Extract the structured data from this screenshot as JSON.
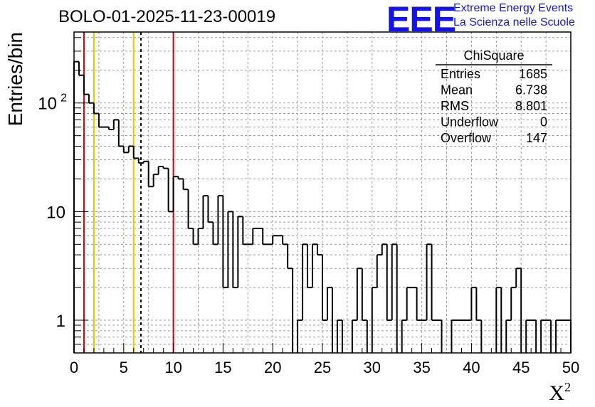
{
  "header": {
    "title": "BOLO-01-2025-11-23-00019",
    "logo": "EEE",
    "brand_line1": "Extreme Energy Events",
    "brand_line2": "La Scienza nelle Scuole"
  },
  "stats": {
    "title": "ChiSquare",
    "rows": [
      {
        "label": "Entries",
        "value": "1685"
      },
      {
        "label": "Mean",
        "value": "6.738"
      },
      {
        "label": "RMS",
        "value": "8.801"
      },
      {
        "label": "Underflow",
        "value": "0"
      },
      {
        "label": "Overflow",
        "value": "147"
      }
    ]
  },
  "chart_data": {
    "type": "histogram",
    "title": "BOLO-01-2025-11-23-00019",
    "xlabel": "X²",
    "ylabel": "Entries/bin",
    "xlim": [
      0,
      50
    ],
    "ylim": [
      0.5,
      450
    ],
    "yscale": "log",
    "grid": true,
    "bin_width": 0.5,
    "bin_start": 0,
    "values": [
      240,
      180,
      120,
      100,
      80,
      60,
      60,
      57,
      70,
      40,
      35,
      40,
      31,
      28,
      29,
      17,
      22,
      26,
      25,
      10,
      21,
      20,
      16,
      7,
      5,
      7,
      14,
      8,
      5,
      14,
      2,
      10,
      2,
      9,
      5,
      5,
      7,
      7,
      5,
      5,
      6,
      6,
      5,
      3,
      0,
      1,
      5,
      2,
      5,
      4,
      1,
      2,
      0,
      1,
      0,
      0,
      1,
      3,
      1,
      0,
      2,
      4,
      5,
      1,
      5,
      0,
      1,
      2,
      2,
      1,
      1,
      5,
      1,
      1,
      0,
      0,
      1,
      1,
      1,
      1,
      2,
      1,
      0,
      0,
      0,
      2,
      0,
      1,
      2,
      3,
      0,
      1,
      1,
      0,
      1,
      1,
      0,
      1,
      1,
      1
    ],
    "xticks": [
      0,
      5,
      10,
      15,
      20,
      25,
      30,
      35,
      40,
      45,
      50
    ],
    "xtick_labels": [
      "0",
      "5",
      "10",
      "15",
      "20",
      "25",
      "30",
      "35",
      "40",
      "45",
      "50"
    ],
    "ytick_labels": [
      {
        "value": 1,
        "label": "1"
      },
      {
        "value": 10,
        "label": "10"
      },
      {
        "value": 100,
        "label": "10",
        "sup": "2"
      }
    ],
    "vertical_lines": [
      {
        "x": 1,
        "color": "#e00000",
        "style": "solid"
      },
      {
        "x": 2,
        "color": "#f0c000",
        "style": "solid"
      },
      {
        "x": 6,
        "color": "#f0c000",
        "style": "solid"
      },
      {
        "x": 6.738,
        "color": "#000000",
        "style": "dashed"
      },
      {
        "x": 10,
        "color": "#e00000",
        "style": "solid"
      }
    ]
  }
}
